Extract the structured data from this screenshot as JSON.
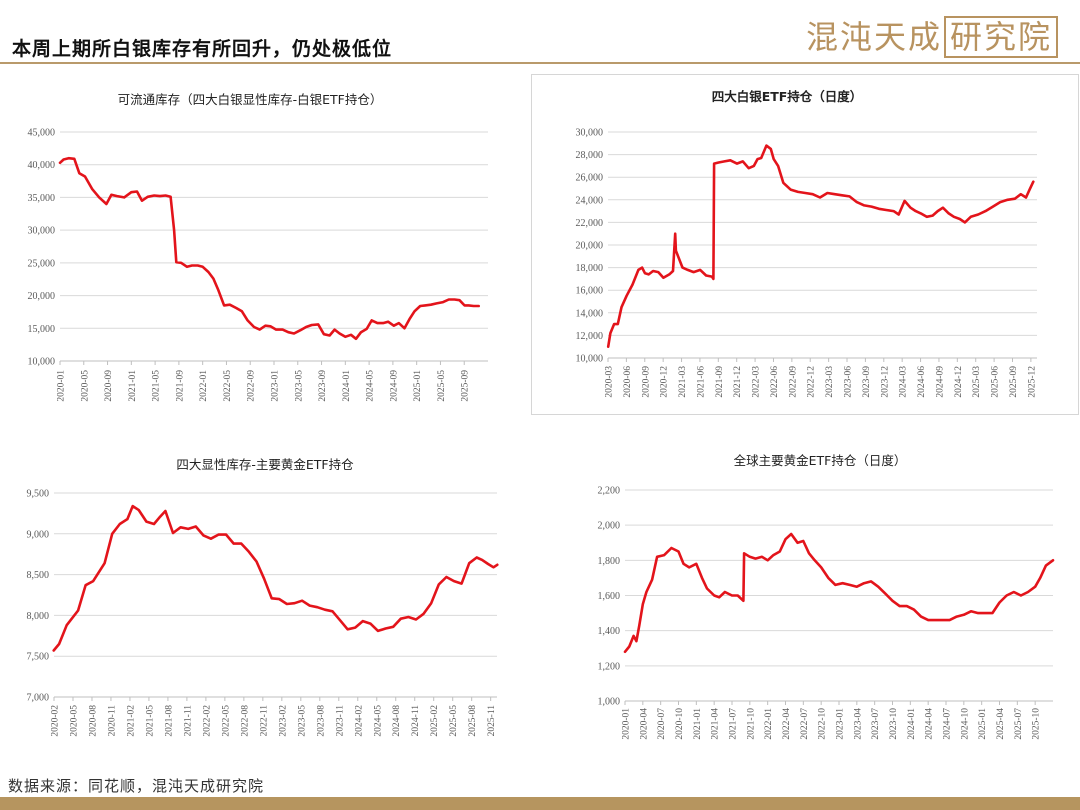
{
  "page": {
    "title": "本周上期所白银库存有所回升，仍处极低位",
    "logo_text": "混沌天成",
    "logo_box_text": "研究院",
    "source": "数据来源：同花顺，混沌天成研究院"
  },
  "colors": {
    "series": "#e3141b",
    "accent": "#b6955f",
    "axis": "#bfbfbf",
    "tick": "#595959"
  },
  "chart_data": [
    {
      "id": "c1",
      "type": "line",
      "title": "可流通库存（四大白银显性库存-白银ETF持仓）",
      "ylim": [
        10000,
        45000
      ],
      "yticks": [
        10000,
        15000,
        20000,
        25000,
        30000,
        35000,
        40000,
        45000
      ],
      "ytick_labels": [
        "10,000",
        "15,000",
        "20,000",
        "25,000",
        "30,000",
        "35,000",
        "40,000",
        "45,000"
      ],
      "xlim": [
        2020.0,
        2026.0
      ],
      "xticks": [
        2020.0,
        2020.3333,
        2020.6667,
        2021.0,
        2021.3333,
        2021.6667,
        2022.0,
        2022.3333,
        2022.6667,
        2023.0,
        2023.3333,
        2023.6667,
        2024.0,
        2024.3333,
        2024.6667,
        2025.0,
        2025.3333,
        2025.6667
      ],
      "xtick_labels": [
        "2020-01",
        "2020-05",
        "2020-09",
        "2021-01",
        "2021-05",
        "2021-09",
        "2022-01",
        "2022-05",
        "2022-09",
        "2023-01",
        "2023-05",
        "2023-09",
        "2024-01",
        "2024-05",
        "2024-09",
        "2025-01",
        "2025-05",
        "2025-09"
      ],
      "series": [
        {
          "x": [
            2020.0,
            2020.05,
            2020.12,
            2020.2,
            2020.27,
            2020.35,
            2020.45,
            2020.55,
            2020.65,
            2020.72,
            2020.8,
            2020.9,
            2021.0,
            2021.08,
            2021.15,
            2021.23,
            2021.32,
            2021.4,
            2021.48,
            2021.55,
            2021.6,
            2021.63,
            2021.7,
            2021.78,
            2021.85,
            2021.93,
            2022.0,
            2022.08,
            2022.15,
            2022.22,
            2022.3,
            2022.38,
            2022.47,
            2022.55,
            2022.63,
            2022.72,
            2022.8,
            2022.88,
            2022.95,
            2023.03,
            2023.12,
            2023.2,
            2023.28,
            2023.37,
            2023.45,
            2023.53,
            2023.62,
            2023.7,
            2023.78,
            2023.85,
            2023.92,
            2024.0,
            2024.08,
            2024.15,
            2024.22,
            2024.3,
            2024.37,
            2024.45,
            2024.53,
            2024.6,
            2024.68,
            2024.75,
            2024.83,
            2024.9,
            2024.97,
            2025.05,
            2025.12,
            2025.2,
            2025.28,
            2025.37,
            2025.45,
            2025.53,
            2025.6,
            2025.67,
            2025.73,
            2025.8,
            2025.87
          ],
          "y": [
            40300,
            40800,
            41000,
            40900,
            38700,
            38200,
            36300,
            35000,
            34000,
            35400,
            35200,
            35000,
            35800,
            35900,
            34500,
            35100,
            35300,
            35200,
            35300,
            35100,
            30000,
            25100,
            25000,
            24400,
            24600,
            24600,
            24400,
            23600,
            22600,
            20800,
            18500,
            18600,
            18100,
            17600,
            16200,
            15200,
            14800,
            15400,
            15300,
            14800,
            14800,
            14400,
            14200,
            14700,
            15200,
            15500,
            15600,
            14100,
            13900,
            14800,
            14200,
            13700,
            14000,
            13400,
            14400,
            14900,
            16200,
            15800,
            15800,
            16000,
            15400,
            15800,
            15000,
            16400,
            17600,
            18400,
            18500,
            18600,
            18800,
            19000,
            19400,
            19400,
            19300,
            18500,
            18500,
            18400,
            18400
          ]
        }
      ]
    },
    {
      "id": "c2",
      "type": "line",
      "title": "四大白银ETF持仓（日度）",
      "ylim": [
        10000,
        30000
      ],
      "yticks": [
        10000,
        12000,
        14000,
        16000,
        18000,
        20000,
        22000,
        24000,
        26000,
        28000,
        30000
      ],
      "ytick_labels": [
        "10,000",
        "12,000",
        "14,000",
        "16,000",
        "18,000",
        "20,000",
        "22,000",
        "24,000",
        "26,000",
        "28,000",
        "30,000"
      ],
      "xlim": [
        2020.1667,
        2026.0
      ],
      "xticks": [
        2020.1667,
        2020.4167,
        2020.6667,
        2020.9167,
        2021.1667,
        2021.4167,
        2021.6667,
        2021.9167,
        2022.1667,
        2022.4167,
        2022.6667,
        2022.9167,
        2023.1667,
        2023.4167,
        2023.6667,
        2023.9167,
        2024.1667,
        2024.4167,
        2024.6667,
        2024.9167,
        2025.1667,
        2025.4167,
        2025.6667,
        2025.9167
      ],
      "xtick_labels": [
        "2020-03",
        "2020-06",
        "2020-09",
        "2020-12",
        "2021-03",
        "2021-06",
        "2021-09",
        "2021-12",
        "2022-03",
        "2022-06",
        "2022-09",
        "2022-12",
        "2023-03",
        "2023-06",
        "2023-09",
        "2023-12",
        "2024-03",
        "2024-06",
        "2024-09",
        "2024-12",
        "2025-03",
        "2025-06",
        "2025-09",
        "2025-12"
      ],
      "series": [
        {
          "x": [
            2020.17,
            2020.2,
            2020.25,
            2020.3,
            2020.35,
            2020.42,
            2020.5,
            2020.58,
            2020.63,
            2020.67,
            2020.72,
            2020.78,
            2020.85,
            2020.92,
            2021.0,
            2021.05,
            2021.08,
            2021.09,
            2021.12,
            2021.18,
            2021.25,
            2021.33,
            2021.42,
            2021.5,
            2021.58,
            2021.6,
            2021.61,
            2021.67,
            2021.75,
            2021.83,
            2021.92,
            2022.0,
            2022.08,
            2022.15,
            2022.2,
            2022.25,
            2022.32,
            2022.38,
            2022.42,
            2022.48,
            2022.55,
            2022.65,
            2022.75,
            2022.85,
            2022.95,
            2023.05,
            2023.15,
            2023.25,
            2023.35,
            2023.45,
            2023.55,
            2023.65,
            2023.75,
            2023.85,
            2023.95,
            2024.05,
            2024.12,
            2024.2,
            2024.28,
            2024.35,
            2024.42,
            2024.5,
            2024.58,
            2024.65,
            2024.72,
            2024.8,
            2024.87,
            2024.95,
            2025.02,
            2025.1,
            2025.2,
            2025.3,
            2025.4,
            2025.5,
            2025.6,
            2025.7,
            2025.78,
            2025.85,
            2025.9,
            2025.95
          ],
          "y": [
            11000,
            12200,
            13000,
            13000,
            14500,
            15500,
            16500,
            17800,
            18000,
            17500,
            17400,
            17700,
            17600,
            17100,
            17400,
            17700,
            21000,
            19500,
            19000,
            18000,
            17800,
            17600,
            17800,
            17300,
            17200,
            17000,
            27200,
            27300,
            27400,
            27500,
            27200,
            27400,
            26800,
            27000,
            27600,
            27700,
            28800,
            28500,
            27600,
            27000,
            25500,
            24900,
            24700,
            24600,
            24500,
            24200,
            24600,
            24500,
            24400,
            24300,
            23800,
            23500,
            23400,
            23200,
            23100,
            23000,
            22700,
            23900,
            23300,
            23000,
            22800,
            22500,
            22600,
            23000,
            23300,
            22800,
            22500,
            22300,
            22000,
            22500,
            22700,
            23000,
            23400,
            23800,
            24000,
            24100,
            24500,
            24200,
            24900,
            25600
          ]
        }
      ]
    },
    {
      "id": "c3",
      "type": "line",
      "title": "四大显性库存-主要黄金ETF持仓",
      "ylim": [
        7000,
        9500
      ],
      "yticks": [
        7000,
        7500,
        8000,
        8500,
        9000,
        9500
      ],
      "ytick_labels": [
        "7,000",
        "7,500",
        "8,000",
        "8,500",
        "9,000",
        "9,500"
      ],
      "xlim": [
        2020.0833,
        2025.9167
      ],
      "xticks": [
        2020.0833,
        2020.3333,
        2020.5833,
        2020.8333,
        2021.0833,
        2021.3333,
        2021.5833,
        2021.8333,
        2022.0833,
        2022.3333,
        2022.5833,
        2022.8333,
        2023.0833,
        2023.3333,
        2023.5833,
        2023.8333,
        2024.0833,
        2024.3333,
        2024.5833,
        2024.8333,
        2025.0833,
        2025.3333,
        2025.5833,
        2025.8333
      ],
      "xtick_labels": [
        "2020-02",
        "2020-05",
        "2020-08",
        "2020-11",
        "2021-02",
        "2021-05",
        "2021-08",
        "2021-11",
        "2022-02",
        "2022-05",
        "2022-08",
        "2022-11",
        "2023-02",
        "2023-05",
        "2023-08",
        "2023-11",
        "2024-02",
        "2024-05",
        "2024-08",
        "2024-11",
        "2025-02",
        "2025-05",
        "2025-08",
        "2025-11"
      ],
      "series": [
        {
          "x": [
            2020.08,
            2020.15,
            2020.25,
            2020.4,
            2020.5,
            2020.6,
            2020.75,
            2020.85,
            2020.95,
            2021.05,
            2021.12,
            2021.2,
            2021.3,
            2021.4,
            2021.48,
            2021.55,
            2021.65,
            2021.75,
            2021.85,
            2021.95,
            2022.05,
            2022.15,
            2022.25,
            2022.35,
            2022.45,
            2022.55,
            2022.65,
            2022.75,
            2022.85,
            2022.95,
            2023.05,
            2023.15,
            2023.25,
            2023.35,
            2023.45,
            2023.55,
            2023.65,
            2023.75,
            2023.85,
            2023.95,
            2024.05,
            2024.15,
            2024.25,
            2024.35,
            2024.45,
            2024.55,
            2024.65,
            2024.75,
            2024.85,
            2024.95,
            2025.05,
            2025.15,
            2025.25,
            2025.35,
            2025.45,
            2025.55,
            2025.65,
            2025.72,
            2025.8,
            2025.87,
            2025.92
          ],
          "y": [
            7570,
            7650,
            7880,
            8060,
            8370,
            8420,
            8640,
            9000,
            9120,
            9180,
            9340,
            9290,
            9150,
            9120,
            9210,
            9280,
            9010,
            9080,
            9060,
            9090,
            8980,
            8940,
            8990,
            8990,
            8880,
            8880,
            8780,
            8660,
            8450,
            8210,
            8200,
            8140,
            8150,
            8180,
            8120,
            8100,
            8070,
            8050,
            7940,
            7830,
            7850,
            7930,
            7900,
            7810,
            7840,
            7860,
            7960,
            7980,
            7950,
            8020,
            8150,
            8380,
            8470,
            8420,
            8390,
            8640,
            8710,
            8680,
            8630,
            8590,
            8620
          ]
        }
      ]
    },
    {
      "id": "c4",
      "type": "line",
      "title": "全球主要黄金ETF持仓（日度）",
      "ylim": [
        1000,
        2200
      ],
      "yticks": [
        1000,
        1200,
        1400,
        1600,
        1800,
        2000,
        2200
      ],
      "ytick_labels": [
        "1,000",
        "1,200",
        "1,400",
        "1,600",
        "1,800",
        "2,000",
        "2,200"
      ],
      "xlim": [
        2020.0,
        2026.0
      ],
      "xticks": [
        2020.0,
        2020.25,
        2020.5,
        2020.75,
        2021.0,
        2021.25,
        2021.5,
        2021.75,
        2022.0,
        2022.25,
        2022.5,
        2022.75,
        2023.0,
        2023.25,
        2023.5,
        2023.75,
        2024.0,
        2024.25,
        2024.5,
        2024.75,
        2025.0,
        2025.25,
        2025.5,
        2025.75
      ],
      "xtick_labels": [
        "2020-01",
        "2020-04",
        "2020-07",
        "2020-10",
        "2021-01",
        "2021-04",
        "2021-07",
        "2021-10",
        "2022-01",
        "2022-04",
        "2022-07",
        "2022-10",
        "2023-01",
        "2023-04",
        "2023-07",
        "2023-10",
        "2024-01",
        "2024-04",
        "2024-07",
        "2024-10",
        "2025-01",
        "2025-04",
        "2025-07",
        "2025-10"
      ],
      "series": [
        {
          "x": [
            2020.0,
            2020.06,
            2020.12,
            2020.16,
            2020.2,
            2020.25,
            2020.3,
            2020.38,
            2020.45,
            2020.55,
            2020.65,
            2020.75,
            2020.82,
            2020.9,
            2021.0,
            2021.08,
            2021.15,
            2021.25,
            2021.32,
            2021.4,
            2021.5,
            2021.58,
            2021.66,
            2021.67,
            2021.75,
            2021.83,
            2021.92,
            2022.0,
            2022.08,
            2022.17,
            2022.25,
            2022.33,
            2022.42,
            2022.5,
            2022.58,
            2022.66,
            2022.75,
            2022.85,
            2022.95,
            2023.05,
            2023.15,
            2023.25,
            2023.35,
            2023.45,
            2023.55,
            2023.65,
            2023.75,
            2023.85,
            2023.95,
            2024.05,
            2024.15,
            2024.25,
            2024.35,
            2024.45,
            2024.55,
            2024.65,
            2024.75,
            2024.85,
            2024.95,
            2025.05,
            2025.15,
            2025.25,
            2025.35,
            2025.45,
            2025.55,
            2025.65,
            2025.75,
            2025.82,
            2025.9,
            2026.0
          ],
          "y": [
            1280,
            1310,
            1370,
            1340,
            1430,
            1550,
            1620,
            1690,
            1820,
            1830,
            1870,
            1850,
            1780,
            1760,
            1780,
            1700,
            1640,
            1600,
            1590,
            1620,
            1600,
            1600,
            1570,
            1840,
            1820,
            1810,
            1820,
            1800,
            1830,
            1850,
            1920,
            1950,
            1900,
            1910,
            1840,
            1800,
            1760,
            1700,
            1660,
            1670,
            1660,
            1650,
            1670,
            1680,
            1650,
            1610,
            1570,
            1540,
            1540,
            1520,
            1480,
            1460,
            1460,
            1460,
            1460,
            1480,
            1490,
            1510,
            1500,
            1500,
            1500,
            1560,
            1600,
            1620,
            1600,
            1620,
            1650,
            1700,
            1770,
            1800
          ]
        }
      ]
    }
  ]
}
